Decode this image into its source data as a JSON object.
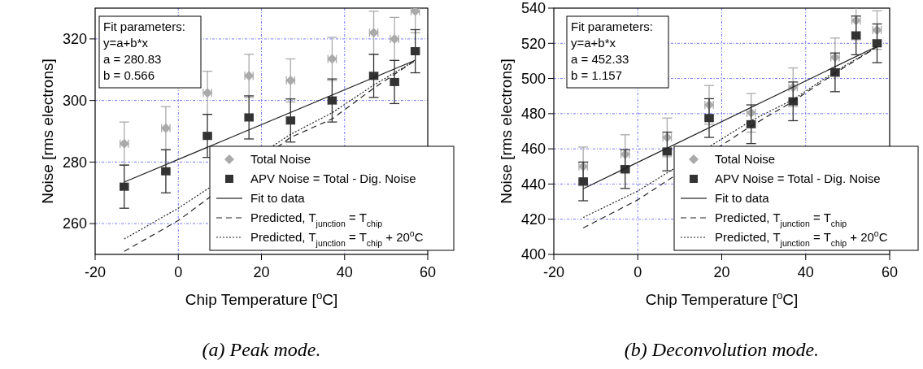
{
  "chart_data": [
    {
      "type": "scatter",
      "xlabel": "Chip Temperature [$^{o}$C]",
      "ylabel": "Noise [rms electrons]",
      "xlim": [
        -20,
        60
      ],
      "xticks": [
        -20,
        0,
        20,
        40,
        60
      ],
      "ylim": [
        250,
        330
      ],
      "yticks": [
        260,
        280,
        300,
        320
      ],
      "grid": true,
      "legend": "bottom right",
      "annotations": [
        "Fit parameters:",
        "y=a+b*x",
        "a = 280.83",
        "b = 0.566",
        "(a) Peak mode."
      ],
      "series": [
        {
          "name": "Total Noise",
          "marker": "diamond",
          "color": "#aaaaaa",
          "x": [
            -13,
            -3,
            7,
            17,
            27,
            37,
            47,
            52,
            57
          ],
          "values": [
            286,
            291,
            302.5,
            308,
            306.5,
            313.5,
            322,
            320,
            329
          ],
          "errors": [
            7,
            7,
            7,
            7,
            7,
            7,
            7,
            7,
            7
          ],
          "xerrors": [
            1,
            1,
            1,
            1,
            1,
            1,
            1,
            1,
            1
          ]
        },
        {
          "name": "APV Noise = Total - Dig. Noise",
          "marker": "square",
          "color": "#333333",
          "x": [
            -13,
            -3,
            7,
            17,
            27,
            37,
            47,
            52,
            57
          ],
          "values": [
            272,
            277,
            288.5,
            294.5,
            293.5,
            300,
            308,
            306,
            316
          ],
          "errors": [
            7,
            7,
            7,
            7,
            7,
            7,
            7,
            7,
            7
          ],
          "xerrors": [
            1,
            1,
            1,
            1,
            1,
            1,
            1,
            1,
            1
          ]
        },
        {
          "name": "Fit to data",
          "type": "line",
          "line_style": "solid",
          "color": "#222222",
          "x": [
            -13,
            57
          ],
          "values": [
            273.5,
            313.1
          ]
        },
        {
          "name": "Predicted, T$_{junction}$ = T$_{chip}$",
          "type": "line",
          "line_style": "dashed",
          "color": "#222222",
          "x": [
            -13,
            0,
            27,
            37,
            47,
            57
          ],
          "values": [
            251,
            261,
            288,
            294,
            304,
            313
          ]
        },
        {
          "name": "Predicted, T$_{junction}$ = T$_{chip}$ + 20$^{o}$C",
          "type": "line",
          "line_style": "dotted",
          "color": "#222222",
          "x": [
            -13,
            0,
            27,
            37,
            47,
            57
          ],
          "values": [
            255,
            265,
            289,
            296,
            305,
            313
          ]
        }
      ]
    },
    {
      "type": "scatter",
      "xlabel": "Chip Temperature [$^{o}$C]",
      "ylabel": "Noise [rms electrons]",
      "xlim": [
        -20,
        60
      ],
      "xticks": [
        -20,
        0,
        20,
        40,
        60
      ],
      "ylim": [
        400,
        540
      ],
      "yticks": [
        400,
        420,
        440,
        460,
        480,
        500,
        520,
        540
      ],
      "grid": true,
      "legend": "bottom right",
      "annotations": [
        "Fit parameters:",
        "y=a+b*x",
        "a = 452.33",
        "b = 1.157",
        "(b) Deconvolution mode."
      ],
      "series": [
        {
          "name": "Total Noise",
          "marker": "diamond",
          "color": "#aaaaaa",
          "x": [
            -13,
            -3,
            7,
            17,
            27,
            37,
            47,
            52,
            57
          ],
          "values": [
            450,
            457,
            466.5,
            485,
            480.5,
            495,
            512,
            533,
            527.5
          ],
          "errors": [
            11,
            11,
            11,
            11,
            11,
            11,
            11,
            11,
            11
          ],
          "xerrors": [
            1,
            1,
            1,
            1,
            1,
            1,
            1,
            1,
            1
          ]
        },
        {
          "name": "APV Noise = Total - Dig. Noise",
          "marker": "square",
          "color": "#333333",
          "x": [
            -13,
            -3,
            7,
            17,
            27,
            37,
            47,
            52,
            57
          ],
          "values": [
            441.5,
            448.5,
            458.5,
            477.5,
            474,
            487,
            503.5,
            524.5,
            520
          ],
          "errors": [
            11,
            11,
            11,
            11,
            11,
            11,
            11,
            11,
            11
          ],
          "xerrors": [
            1,
            1,
            1,
            1,
            1,
            1,
            1,
            1,
            1
          ]
        },
        {
          "name": "Fit to data",
          "type": "line",
          "line_style": "solid",
          "color": "#222222",
          "x": [
            -13,
            57
          ],
          "values": [
            437.3,
            518.3
          ]
        },
        {
          "name": "Predicted, T$_{junction}$ = T$_{chip}$",
          "type": "line",
          "line_style": "dashed",
          "color": "#222222",
          "x": [
            -13,
            0,
            27,
            37,
            47,
            57
          ],
          "values": [
            415,
            431,
            473,
            487,
            503,
            518
          ]
        },
        {
          "name": "Predicted, T$_{junction}$ =  T$_{chip}$ + 20$^{o}$C",
          "type": "line",
          "line_style": "dotted",
          "color": "#222222",
          "x": [
            -13,
            0,
            27,
            37,
            47,
            57
          ],
          "values": [
            421,
            436,
            476,
            488,
            504,
            518
          ]
        }
      ]
    }
  ]
}
